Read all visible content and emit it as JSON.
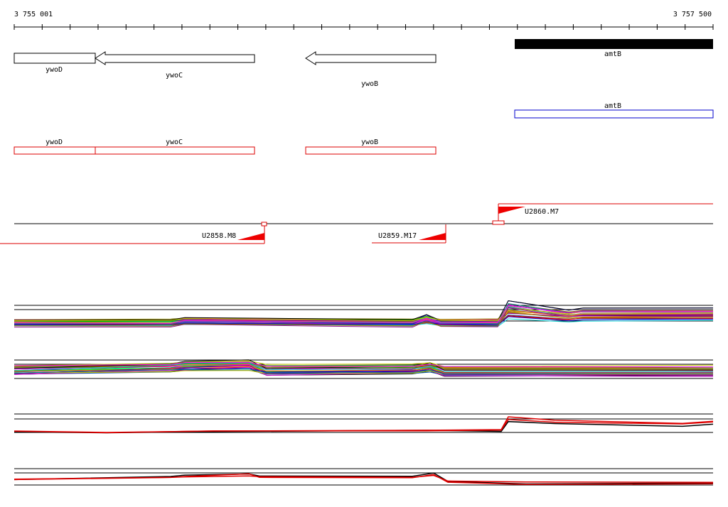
{
  "ruler": {
    "start": "3 755 001",
    "end": "3 757 500"
  },
  "genes": [
    {
      "label": "ywoD"
    },
    {
      "label": "ywoC"
    },
    {
      "label": "ywoB"
    },
    {
      "label": "amtB"
    }
  ],
  "annotations": [
    {
      "label": "amtB"
    }
  ],
  "cds": [
    {
      "label": "ywoD"
    },
    {
      "label": "ywoC"
    },
    {
      "label": "ywoB"
    }
  ],
  "transcripts": [
    {
      "label": "U2858.M8"
    },
    {
      "label": "U2859.M17"
    },
    {
      "label": "U2860.M7"
    }
  ]
}
